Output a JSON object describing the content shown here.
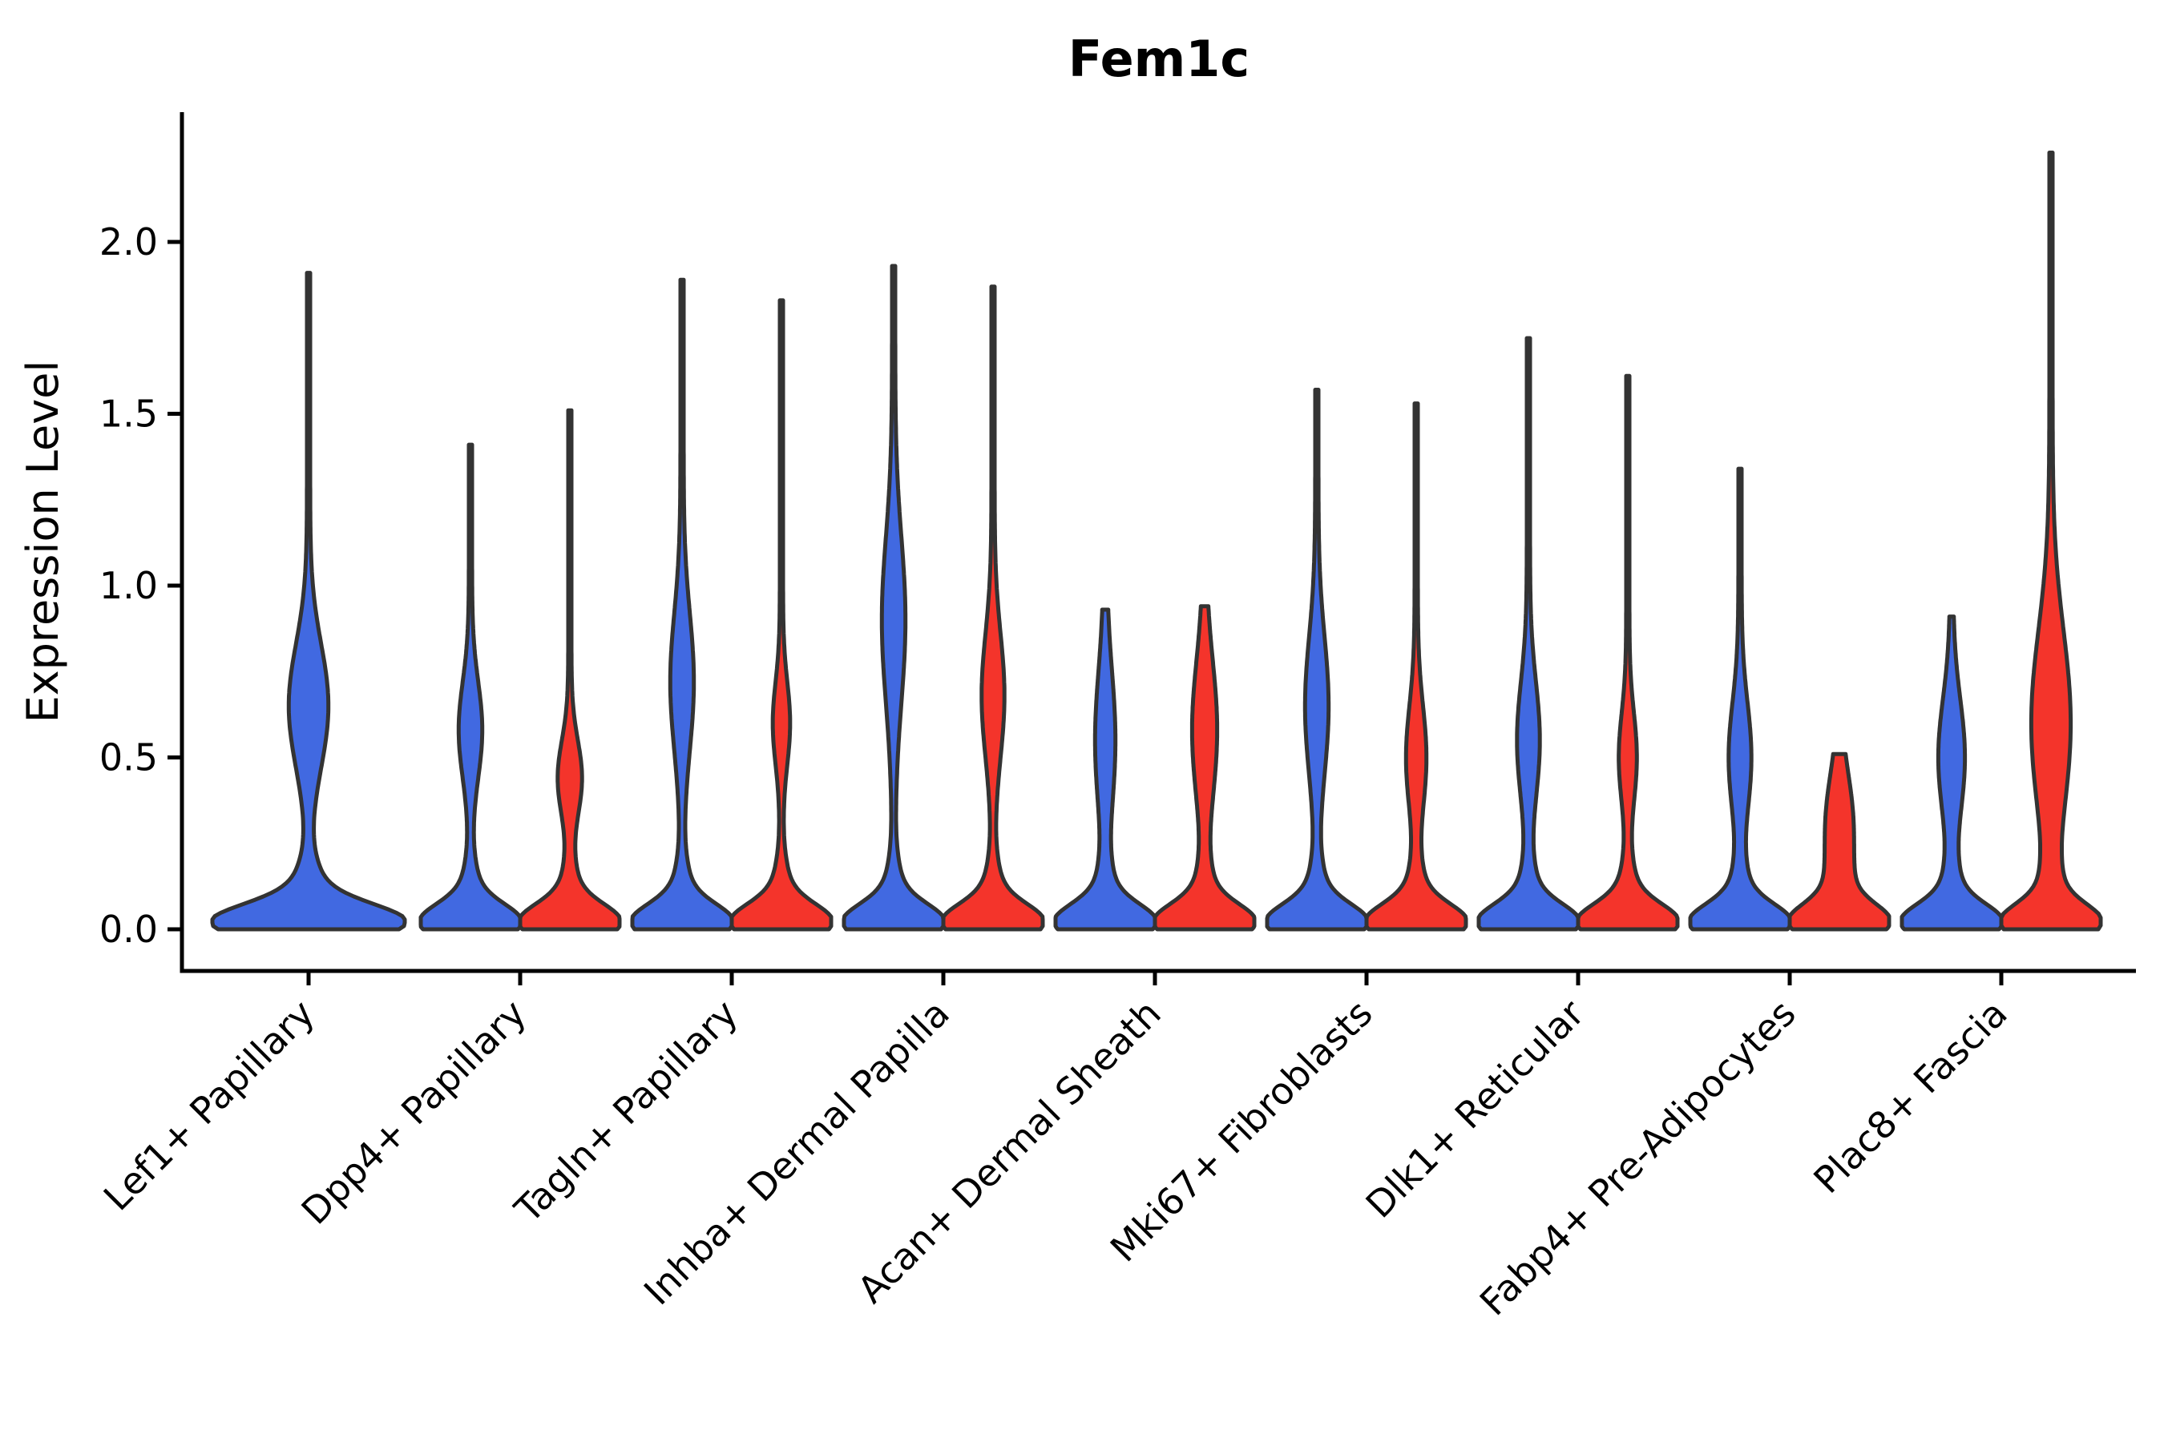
{
  "chart_data": {
    "type": "violin",
    "title": "Fem1c",
    "ylabel": "Expression Level",
    "xlabel": "",
    "grid": false,
    "legend": "none",
    "ylim": [
      -0.12,
      2.38
    ],
    "yticks": [
      0.0,
      0.5,
      1.0,
      1.5,
      2.0
    ],
    "ytick_labels": [
      "0.0",
      "0.5",
      "1.0",
      "1.5",
      "2.0"
    ],
    "xtick_rotation": 45,
    "categories": [
      "Lef1+ Papillary",
      "Dpp4+ Papillary",
      "Tagln+ Papillary",
      "Inhba+ Dermal Papilla",
      "Acan+ Dermal Sheath",
      "Mki67+ Fibroblasts",
      "Dlk1+ Reticular",
      "Fabp4+ Pre-Adipocytes",
      "Plac8+ Fascia"
    ],
    "series": [
      {
        "name": "blue",
        "color": "#4169E1"
      },
      {
        "name": "red",
        "color": "#F4342B"
      }
    ],
    "edge_color": "#333333",
    "violins": [
      {
        "category": "Lef1+ Papillary",
        "cat": 0,
        "series": 0,
        "pos": 0,
        "hw": 120,
        "max_expression": 1.91,
        "main_mode": 0.02,
        "bulge_mode": 0.65,
        "bulge_sigma": 0.18,
        "bulge_amp": 0.24
      },
      {
        "category": "Dpp4+ Papillary",
        "cat": 1,
        "series": 0,
        "pos": -1,
        "hw": 62,
        "max_expression": 1.41,
        "main_mode": 0.02,
        "bulge_mode": 0.58,
        "bulge_sigma": 0.14,
        "bulge_amp": 0.26
      },
      {
        "category": "Dpp4+ Papillary",
        "cat": 1,
        "series": 1,
        "pos": 1,
        "hw": 62,
        "max_expression": 1.51,
        "main_mode": 0.02,
        "bulge_mode": 0.44,
        "bulge_sigma": 0.11,
        "bulge_amp": 0.27
      },
      {
        "category": "Tagln+ Papillary",
        "cat": 2,
        "series": 0,
        "pos": -1,
        "hw": 62,
        "max_expression": 1.89,
        "main_mode": 0.02,
        "bulge_mode": 0.72,
        "bulge_sigma": 0.2,
        "bulge_amp": 0.26
      },
      {
        "category": "Tagln+ Papillary",
        "cat": 2,
        "series": 1,
        "pos": 1,
        "hw": 62,
        "max_expression": 1.83,
        "main_mode": 0.02,
        "bulge_mode": 0.6,
        "bulge_sigma": 0.12,
        "bulge_amp": 0.18
      },
      {
        "category": "Inhba+ Dermal Papilla",
        "cat": 3,
        "series": 0,
        "pos": -1,
        "hw": 62,
        "max_expression": 1.93,
        "main_mode": 0.02,
        "bulge_mode": 0.9,
        "bulge_sigma": 0.24,
        "bulge_amp": 0.26
      },
      {
        "category": "Inhba+ Dermal Papilla",
        "cat": 3,
        "series": 1,
        "pos": 1,
        "hw": 62,
        "max_expression": 1.87,
        "main_mode": 0.02,
        "bulge_mode": 0.68,
        "bulge_sigma": 0.18,
        "bulge_amp": 0.25
      },
      {
        "category": "Acan+ Dermal Sheath",
        "cat": 4,
        "series": 0,
        "pos": -1,
        "hw": 62,
        "max_expression": 0.93,
        "main_mode": 0.02,
        "bulge_mode": 0.55,
        "bulge_sigma": 0.2,
        "bulge_amp": 0.22
      },
      {
        "category": "Acan+ Dermal Sheath",
        "cat": 4,
        "series": 1,
        "pos": 1,
        "hw": 62,
        "max_expression": 0.94,
        "main_mode": 0.02,
        "bulge_mode": 0.58,
        "bulge_sigma": 0.2,
        "bulge_amp": 0.28
      },
      {
        "category": "Mki67+ Fibroblasts",
        "cat": 5,
        "series": 0,
        "pos": -1,
        "hw": 62,
        "max_expression": 1.57,
        "main_mode": 0.02,
        "bulge_mode": 0.65,
        "bulge_sigma": 0.2,
        "bulge_amp": 0.26
      },
      {
        "category": "Mki67+ Fibroblasts",
        "cat": 5,
        "series": 1,
        "pos": 1,
        "hw": 62,
        "max_expression": 1.53,
        "main_mode": 0.02,
        "bulge_mode": 0.5,
        "bulge_sigma": 0.15,
        "bulge_amp": 0.22
      },
      {
        "category": "Dlk1+ Reticular",
        "cat": 6,
        "series": 0,
        "pos": -1,
        "hw": 62,
        "max_expression": 1.72,
        "main_mode": 0.02,
        "bulge_mode": 0.55,
        "bulge_sigma": 0.17,
        "bulge_amp": 0.25
      },
      {
        "category": "Dlk1+ Reticular",
        "cat": 6,
        "series": 1,
        "pos": 1,
        "hw": 62,
        "max_expression": 1.61,
        "main_mode": 0.02,
        "bulge_mode": 0.5,
        "bulge_sigma": 0.13,
        "bulge_amp": 0.19
      },
      {
        "category": "Fabp4+ Pre-Adipocytes",
        "cat": 7,
        "series": 0,
        "pos": -1,
        "hw": 62,
        "max_expression": 1.34,
        "main_mode": 0.02,
        "bulge_mode": 0.5,
        "bulge_sigma": 0.16,
        "bulge_amp": 0.25
      },
      {
        "category": "Fabp4+ Pre-Adipocytes",
        "cat": 7,
        "series": 1,
        "pos": 1,
        "hw": 62,
        "max_expression": 0.51,
        "main_mode": 0.02,
        "bulge_mode": 0.3,
        "bulge_sigma": 0.15,
        "bulge_amp": 0.33
      },
      {
        "category": "Plac8+ Fascia",
        "cat": 8,
        "series": 0,
        "pos": -1,
        "hw": 62,
        "max_expression": 0.91,
        "main_mode": 0.02,
        "bulge_mode": 0.5,
        "bulge_sigma": 0.17,
        "bulge_amp": 0.3
      },
      {
        "category": "Plac8+ Fascia",
        "cat": 8,
        "series": 1,
        "pos": 1,
        "hw": 62,
        "max_expression": 2.26,
        "main_mode": 0.02,
        "bulge_mode": 0.6,
        "bulge_sigma": 0.27,
        "bulge_amp": 0.48
      }
    ]
  }
}
